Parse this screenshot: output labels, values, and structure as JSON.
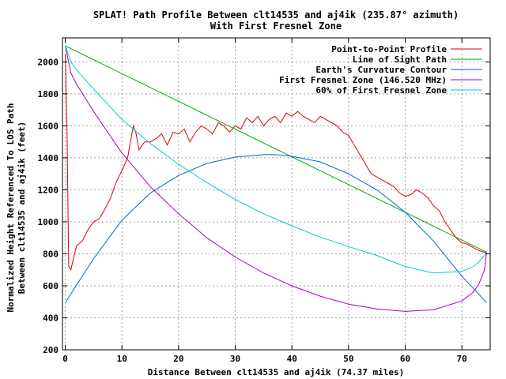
{
  "chart_data": {
    "type": "line",
    "title": "SPLAT! Path Profile Between clt14535 and aj4ik (235.87° azimuth)",
    "subtitle": "With First Fresnel Zone",
    "xlabel": "Distance Between clt14535 and aj4ik (74.37 miles)",
    "ylabel": "Normalized Height Referenced To LOS Path Between clt14535 and aj4ik (feet)",
    "xlim": [
      -0.5,
      75
    ],
    "ylim": [
      200,
      2150
    ],
    "x_ticks": [
      0,
      10,
      20,
      30,
      40,
      50,
      60,
      70
    ],
    "y_ticks": [
      200,
      400,
      600,
      800,
      1000,
      1200,
      1400,
      1600,
      1800,
      2000
    ],
    "grid": true,
    "legend_position": "top-right",
    "series": [
      {
        "name": "Point-to-Point Profile",
        "color": "#dd0000",
        "x": [
          0,
          0.3,
          0.6,
          1,
          1.5,
          2,
          3,
          4,
          5,
          6,
          7,
          8,
          9,
          10,
          11,
          12,
          12.5,
          13,
          14,
          15,
          16,
          17,
          18,
          19,
          20,
          21,
          22,
          23,
          24,
          25,
          26,
          27,
          28,
          29,
          30,
          31,
          32,
          33,
          34,
          35,
          36,
          37,
          38,
          39,
          40,
          41,
          42,
          43,
          44,
          45,
          46,
          47,
          48,
          49,
          50,
          51,
          52,
          53,
          54,
          55,
          56,
          57,
          58,
          59,
          60,
          61,
          62,
          63,
          64,
          65,
          66,
          67,
          68,
          69,
          70,
          71,
          72,
          73,
          74,
          74.37
        ],
        "values": [
          2050,
          1600,
          720,
          700,
          780,
          850,
          880,
          950,
          1000,
          1020,
          1080,
          1150,
          1250,
          1320,
          1400,
          1600,
          1550,
          1450,
          1500,
          1500,
          1520,
          1550,
          1480,
          1560,
          1550,
          1580,
          1500,
          1560,
          1600,
          1580,
          1550,
          1620,
          1600,
          1560,
          1600,
          1580,
          1650,
          1620,
          1660,
          1600,
          1640,
          1660,
          1620,
          1680,
          1660,
          1690,
          1660,
          1640,
          1620,
          1660,
          1640,
          1620,
          1600,
          1560,
          1540,
          1480,
          1420,
          1360,
          1300,
          1280,
          1260,
          1240,
          1220,
          1180,
          1160,
          1170,
          1200,
          1180,
          1150,
          1100,
          1070,
          1000,
          950,
          900,
          870,
          860,
          840,
          820,
          810,
          805
        ]
      },
      {
        "name": "Line of Sight Path",
        "color": "#00aa00",
        "x": [
          0,
          74.37
        ],
        "values": [
          2100,
          810
        ]
      },
      {
        "name": "Earth's Curvature Contour",
        "color": "#0066cc",
        "x": [
          0,
          5,
          10,
          15,
          20,
          25,
          30,
          35,
          37.2,
          40,
          45,
          50,
          55,
          60,
          65,
          70,
          74.37
        ],
        "values": [
          495,
          770,
          1010,
          1180,
          1290,
          1365,
          1405,
          1420,
          1420,
          1410,
          1375,
          1300,
          1200,
          1060,
          880,
          660,
          495
        ]
      },
      {
        "name": "First Fresnel Zone (146.520 MHz)",
        "color": "#aa00cc",
        "x": [
          0,
          1,
          2,
          5,
          10,
          15,
          20,
          25,
          30,
          35,
          40,
          45,
          50,
          55,
          60,
          65,
          70,
          72,
          73,
          74,
          74.37
        ],
        "values": [
          2100,
          1930,
          1860,
          1690,
          1430,
          1220,
          1050,
          900,
          780,
          680,
          600,
          535,
          485,
          455,
          440,
          450,
          505,
          560,
          610,
          700,
          810
        ]
      },
      {
        "name": "60% of First Fresnel Zone",
        "color": "#00cccc",
        "x": [
          0,
          1,
          2,
          5,
          10,
          15,
          20,
          25,
          30,
          35,
          40,
          45,
          50,
          55,
          60,
          65,
          70,
          72,
          73,
          74,
          74.37
        ],
        "values": [
          2100,
          2000,
          1950,
          1830,
          1640,
          1490,
          1360,
          1245,
          1140,
          1050,
          975,
          905,
          845,
          790,
          720,
          680,
          690,
          720,
          750,
          790,
          810
        ]
      }
    ]
  }
}
